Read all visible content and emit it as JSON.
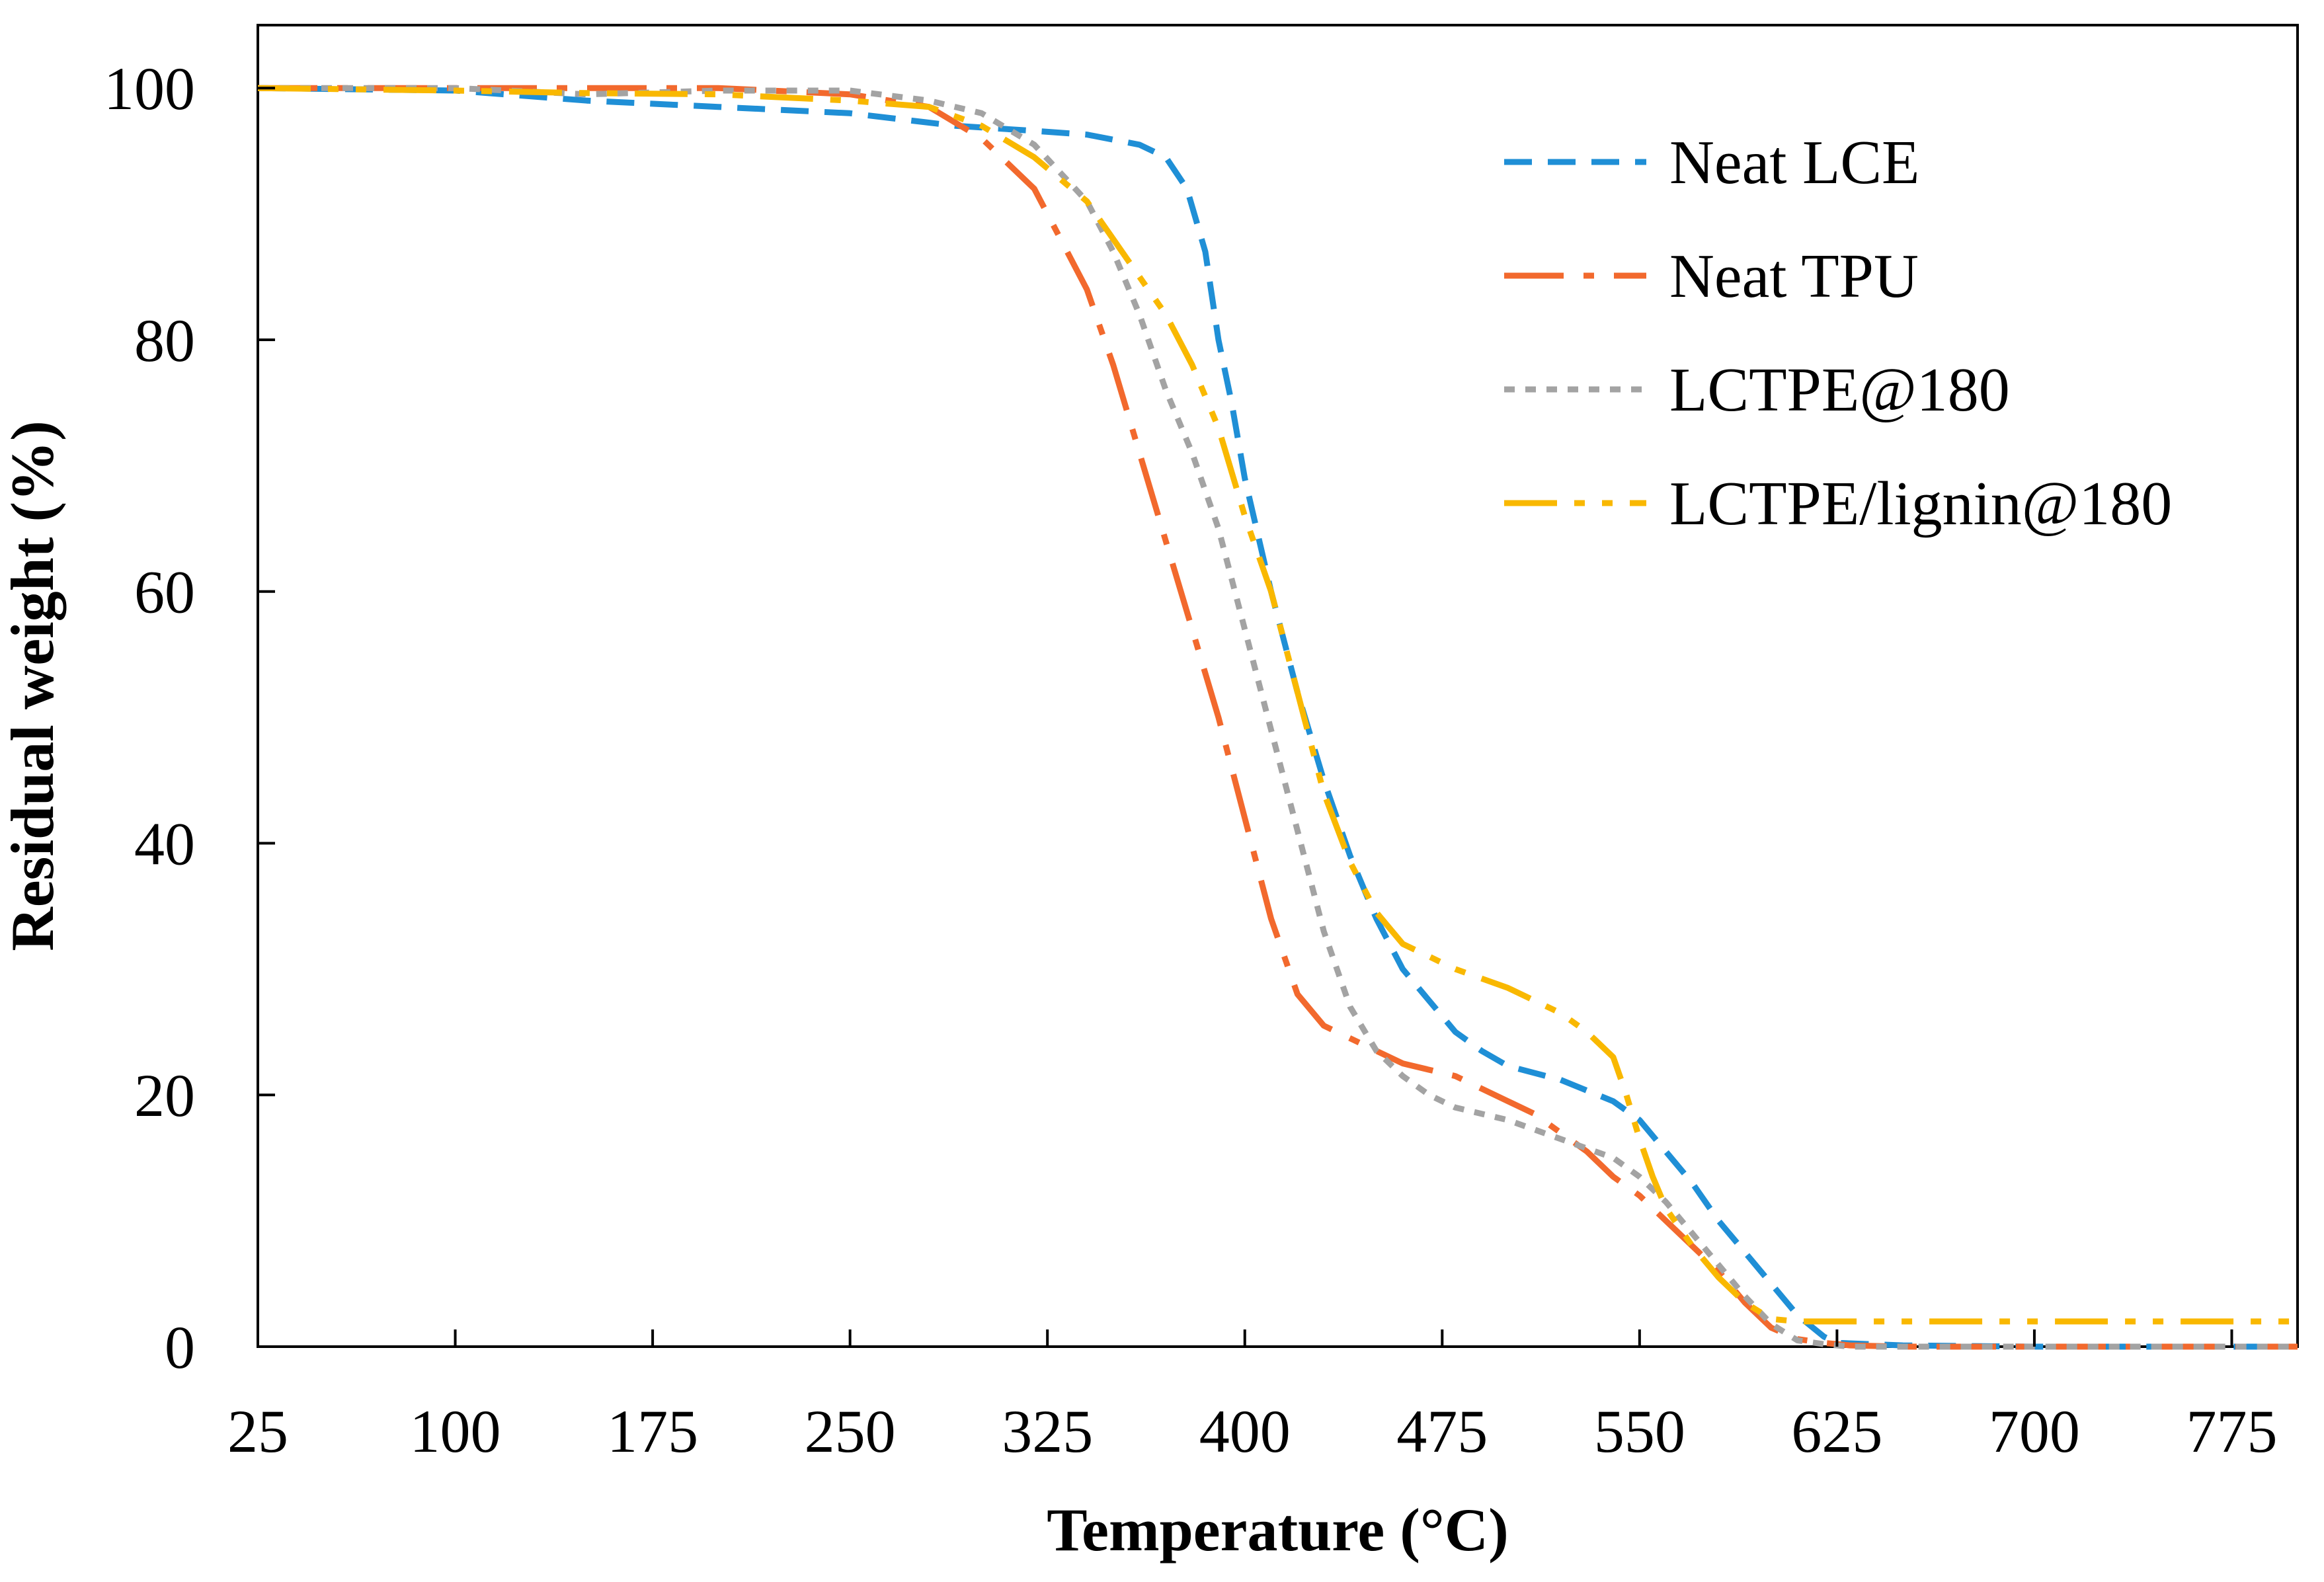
{
  "chart_data": {
    "type": "line",
    "title": "",
    "xlabel": "Temperature (°C)",
    "ylabel": "Residual weight (%)",
    "xlim": [
      25,
      800
    ],
    "ylim": [
      0,
      105
    ],
    "xticks": [
      25,
      100,
      175,
      250,
      325,
      400,
      475,
      550,
      625,
      700,
      775
    ],
    "yticks": [
      0,
      20,
      40,
      60,
      80,
      100
    ],
    "grid": false,
    "legend_position": "top-right",
    "series": [
      {
        "name": "Neat LCE",
        "color": "#1f8fd6",
        "dash": "dashed",
        "x": [
          25,
          100,
          150,
          200,
          250,
          290,
          320,
          340,
          360,
          370,
          378,
          385,
          390,
          395,
          400,
          410,
          420,
          430,
          440,
          450,
          460,
          470,
          480,
          490,
          500,
          520,
          540,
          550,
          560,
          570,
          580,
          590,
          600,
          610,
          620,
          625,
          650,
          700,
          800
        ],
        "y": [
          100,
          99.8,
          99,
          98.5,
          98,
          97,
          96.6,
          96.3,
          95.5,
          94.5,
          92,
          87,
          80,
          75,
          69,
          60,
          52,
          45,
          39,
          34,
          30,
          27.5,
          25,
          23.5,
          22.3,
          21.2,
          19.5,
          18,
          15.5,
          13,
          10,
          7.5,
          5,
          2.5,
          0.8,
          0.3,
          0.1,
          0,
          0
        ]
      },
      {
        "name": "Neat TPU",
        "color": "#f2692d",
        "dash": "dashdot",
        "x": [
          25,
          100,
          150,
          200,
          250,
          280,
          300,
          320,
          330,
          340,
          350,
          360,
          370,
          380,
          390,
          400,
          410,
          420,
          430,
          440,
          460,
          480,
          500,
          510,
          520,
          530,
          540,
          550,
          560,
          570,
          580,
          590,
          600,
          610,
          620,
          630,
          650,
          700,
          800
        ],
        "y": [
          100,
          100,
          100,
          100,
          99.5,
          98.5,
          96,
          92,
          88,
          84,
          78,
          71,
          64,
          57,
          50,
          42,
          34,
          28,
          25.5,
          24.5,
          22.5,
          21.5,
          19.5,
          18.5,
          17,
          15.5,
          13.5,
          12,
          10,
          8,
          6,
          3.5,
          1.5,
          0.6,
          0.3,
          0.1,
          0,
          0,
          0
        ]
      },
      {
        "name": "LCTPE@180",
        "color": "#a3a3a3",
        "dash": "dotted",
        "x": [
          25,
          100,
          150,
          200,
          250,
          280,
          300,
          320,
          340,
          350,
          360,
          370,
          380,
          390,
          400,
          410,
          420,
          430,
          440,
          450,
          460,
          470,
          480,
          500,
          520,
          540,
          550,
          560,
          570,
          580,
          590,
          600,
          610,
          620,
          630,
          650,
          700,
          800
        ],
        "y": [
          100,
          100,
          99.5,
          99.8,
          99.8,
          99,
          98,
          95.5,
          91,
          87,
          82,
          76,
          71,
          65,
          57,
          49,
          41,
          33,
          27,
          23.5,
          21.5,
          20,
          19,
          18,
          16.5,
          15,
          13.5,
          11.5,
          9,
          6.5,
          4,
          1.8,
          0.5,
          0.2,
          0,
          0,
          0,
          0
        ]
      },
      {
        "name": "LCTPE/lignin@180",
        "color": "#f9b800",
        "dash": "dashdotdot",
        "x": [
          25,
          100,
          150,
          200,
          250,
          280,
          300,
          320,
          340,
          350,
          360,
          370,
          380,
          390,
          400,
          410,
          420,
          430,
          440,
          450,
          460,
          470,
          480,
          500,
          520,
          530,
          540,
          545,
          550,
          555,
          560,
          570,
          580,
          590,
          600,
          610,
          620,
          630,
          650,
          700,
          800
        ],
        "y": [
          100,
          99.8,
          99.6,
          99.5,
          99,
          98.5,
          97,
          94.5,
          91,
          88,
          85,
          82,
          78,
          73,
          66,
          60,
          52,
          44,
          38.5,
          34.5,
          32,
          31,
          30,
          28.5,
          26.5,
          25,
          23,
          20,
          16.5,
          13.5,
          11,
          8,
          5.5,
          3.5,
          2.2,
          2,
          2,
          2,
          2,
          2,
          2
        ]
      }
    ]
  }
}
